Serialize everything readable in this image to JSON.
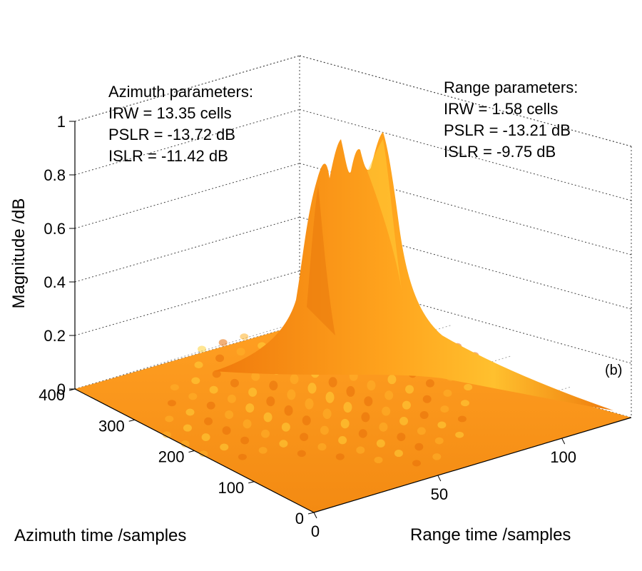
{
  "chart_data": {
    "type": "surface",
    "xlabel": "Range time /samples",
    "ylabel": "Azimuth time /samples",
    "zlabel": "Magnitude /dB",
    "x_ticks": [
      "0",
      "50",
      "100"
    ],
    "y_ticks": [
      "0",
      "100",
      "200",
      "300",
      "400"
    ],
    "z_ticks": [
      "0",
      "0.2",
      "0.4",
      "0.6",
      "0.8",
      "1"
    ],
    "x_range": [
      0,
      128
    ],
    "y_range": [
      0,
      400
    ],
    "z_range": [
      0,
      1
    ],
    "grid": true,
    "colormap": "orange",
    "peak": {
      "range_sample": 64,
      "azimuth_sample": 200,
      "magnitude": 1.0
    },
    "annotations": {
      "azimuth": {
        "title": "Azimuth parameters:",
        "irw": "IRW = 13.35 cells",
        "pslr": "PSLR = -13.72 dB",
        "islr": "ISLR = -11.42 dB"
      },
      "range": {
        "title": "Range parameters:",
        "irw": "IRW = 1.58 cells",
        "pslr": "PSLR = -13.21 dB",
        "islr": "ISLR = -9.75 dB"
      }
    },
    "panel_label": "(b)"
  },
  "colors": {
    "surface_base": "#ff9a1a",
    "surface_highlight": "#ffd23a",
    "surface_shadow": "#e8700a"
  }
}
